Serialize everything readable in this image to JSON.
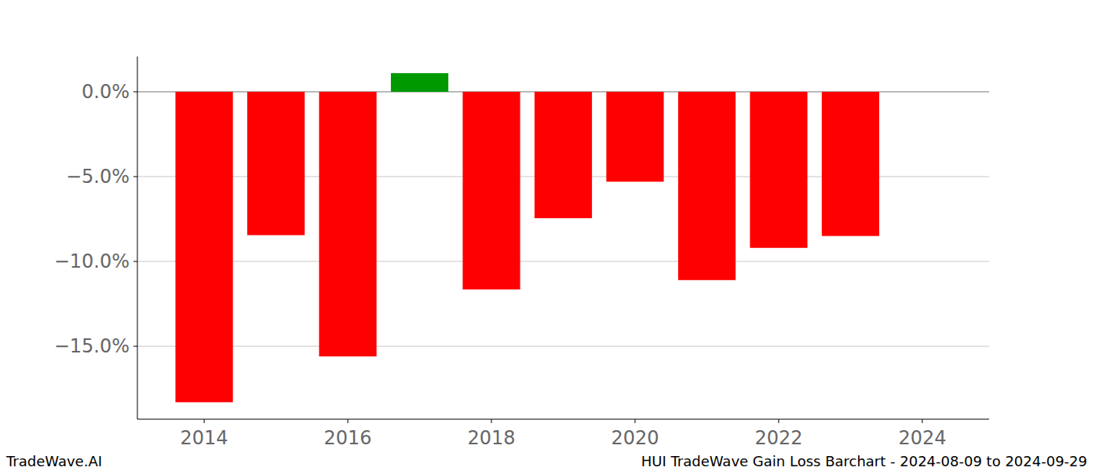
{
  "chart_data": {
    "type": "bar",
    "title": "HUI TradeWave Gain Loss Barchart - 2024-08-09 to 2024-09-29",
    "annotations": [
      "TradeWave.AI"
    ],
    "x": [
      2014,
      2015,
      2016,
      2017,
      2018,
      2019,
      2020,
      2021,
      2022,
      2023
    ],
    "values": [
      -18.3,
      -8.45,
      -15.6,
      1.1,
      -11.65,
      -7.45,
      -5.3,
      -11.1,
      -9.2,
      -8.5
    ],
    "colors": [
      "#ff0000",
      "#ff0000",
      "#ff0000",
      "#009900",
      "#ff0000",
      "#ff0000",
      "#ff0000",
      "#ff0000",
      "#ff0000",
      "#ff0000"
    ],
    "xlim": [
      2013.07,
      2024.93
    ],
    "xticks": [
      2014,
      2016,
      2018,
      2020,
      2022,
      2024
    ],
    "ylim": [
      -19.3,
      2.08
    ],
    "yticks": [
      {
        "value": -15,
        "label": "−15.0%"
      },
      {
        "value": -10,
        "label": "−10.0%"
      },
      {
        "value": -5,
        "label": "−5.0%"
      },
      {
        "value": 0,
        "label": "0.0%"
      }
    ],
    "grid": true
  }
}
